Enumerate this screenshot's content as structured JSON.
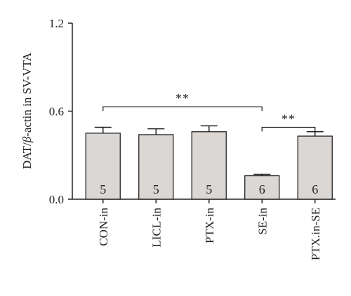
{
  "chart_data": {
    "type": "bar",
    "title": "",
    "ylabel_parts": {
      "pre": "DAT/",
      "italic": "β",
      "post": "-actin in SV-VTA"
    },
    "categories": [
      "CON-in",
      "LICL-in",
      "PTX-in",
      "SE-in",
      "PTX.in-SE"
    ],
    "values": [
      0.45,
      0.44,
      0.46,
      0.16,
      0.43
    ],
    "errors": [
      0.04,
      0.04,
      0.04,
      0.01,
      0.03
    ],
    "n": [
      "5",
      "5",
      "5",
      "6",
      "6"
    ],
    "ylim": [
      0,
      1.2
    ],
    "yticks": [
      "0.0",
      "0.6",
      "1.2"
    ],
    "bar_color": "#dbd7d4",
    "grid": false,
    "significance": [
      {
        "from": 0,
        "to": 3,
        "label": "**",
        "y": 0.63
      },
      {
        "from": 3,
        "to": 4,
        "label": "**",
        "y": 0.49
      }
    ]
  }
}
